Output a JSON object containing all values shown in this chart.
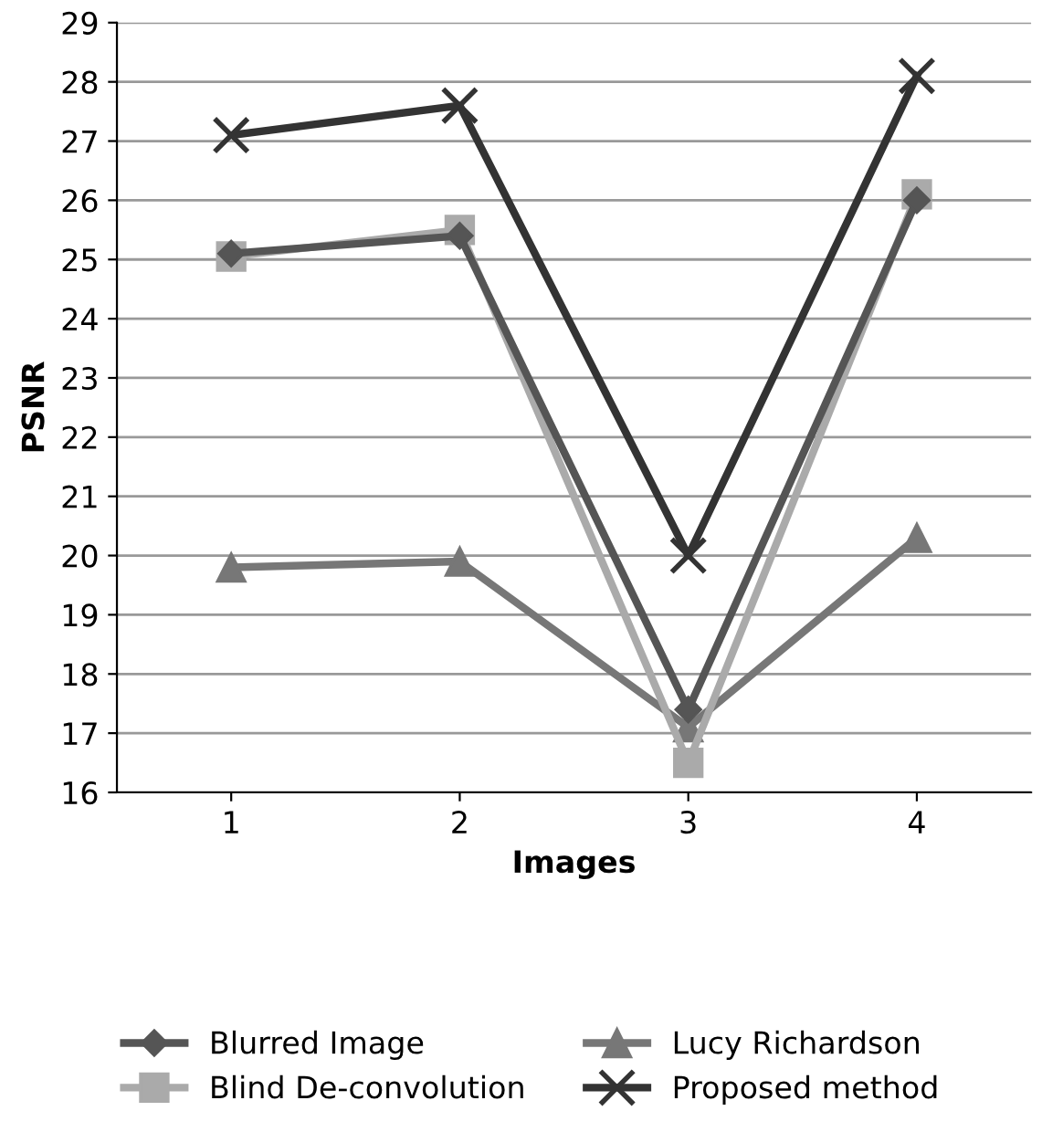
{
  "chart_data": {
    "type": "line",
    "xlabel": "Images",
    "ylabel": "PSNR",
    "categories": [
      "1",
      "2",
      "3",
      "4"
    ],
    "series": [
      {
        "name": "Blurred Image",
        "color": "#555555",
        "marker": "diamond",
        "values": [
          25.1,
          25.4,
          17.4,
          26.0
        ]
      },
      {
        "name": "Blind De-convolution",
        "color": "#aaaaaa",
        "marker": "square",
        "values": [
          25.05,
          25.5,
          16.5,
          26.1
        ]
      },
      {
        "name": "Lucy Richardson",
        "color": "#777777",
        "marker": "triangle",
        "values": [
          19.8,
          19.9,
          17.1,
          20.3
        ]
      },
      {
        "name": "Proposed method",
        "color": "#333333",
        "marker": "cross",
        "values": [
          27.1,
          27.6,
          20.0,
          28.1
        ]
      }
    ],
    "ylim": [
      16,
      29
    ],
    "yticks": [
      16,
      17,
      18,
      19,
      20,
      21,
      22,
      23,
      24,
      25,
      26,
      27,
      28,
      29
    ],
    "grid": "y",
    "legend": "bottom"
  }
}
